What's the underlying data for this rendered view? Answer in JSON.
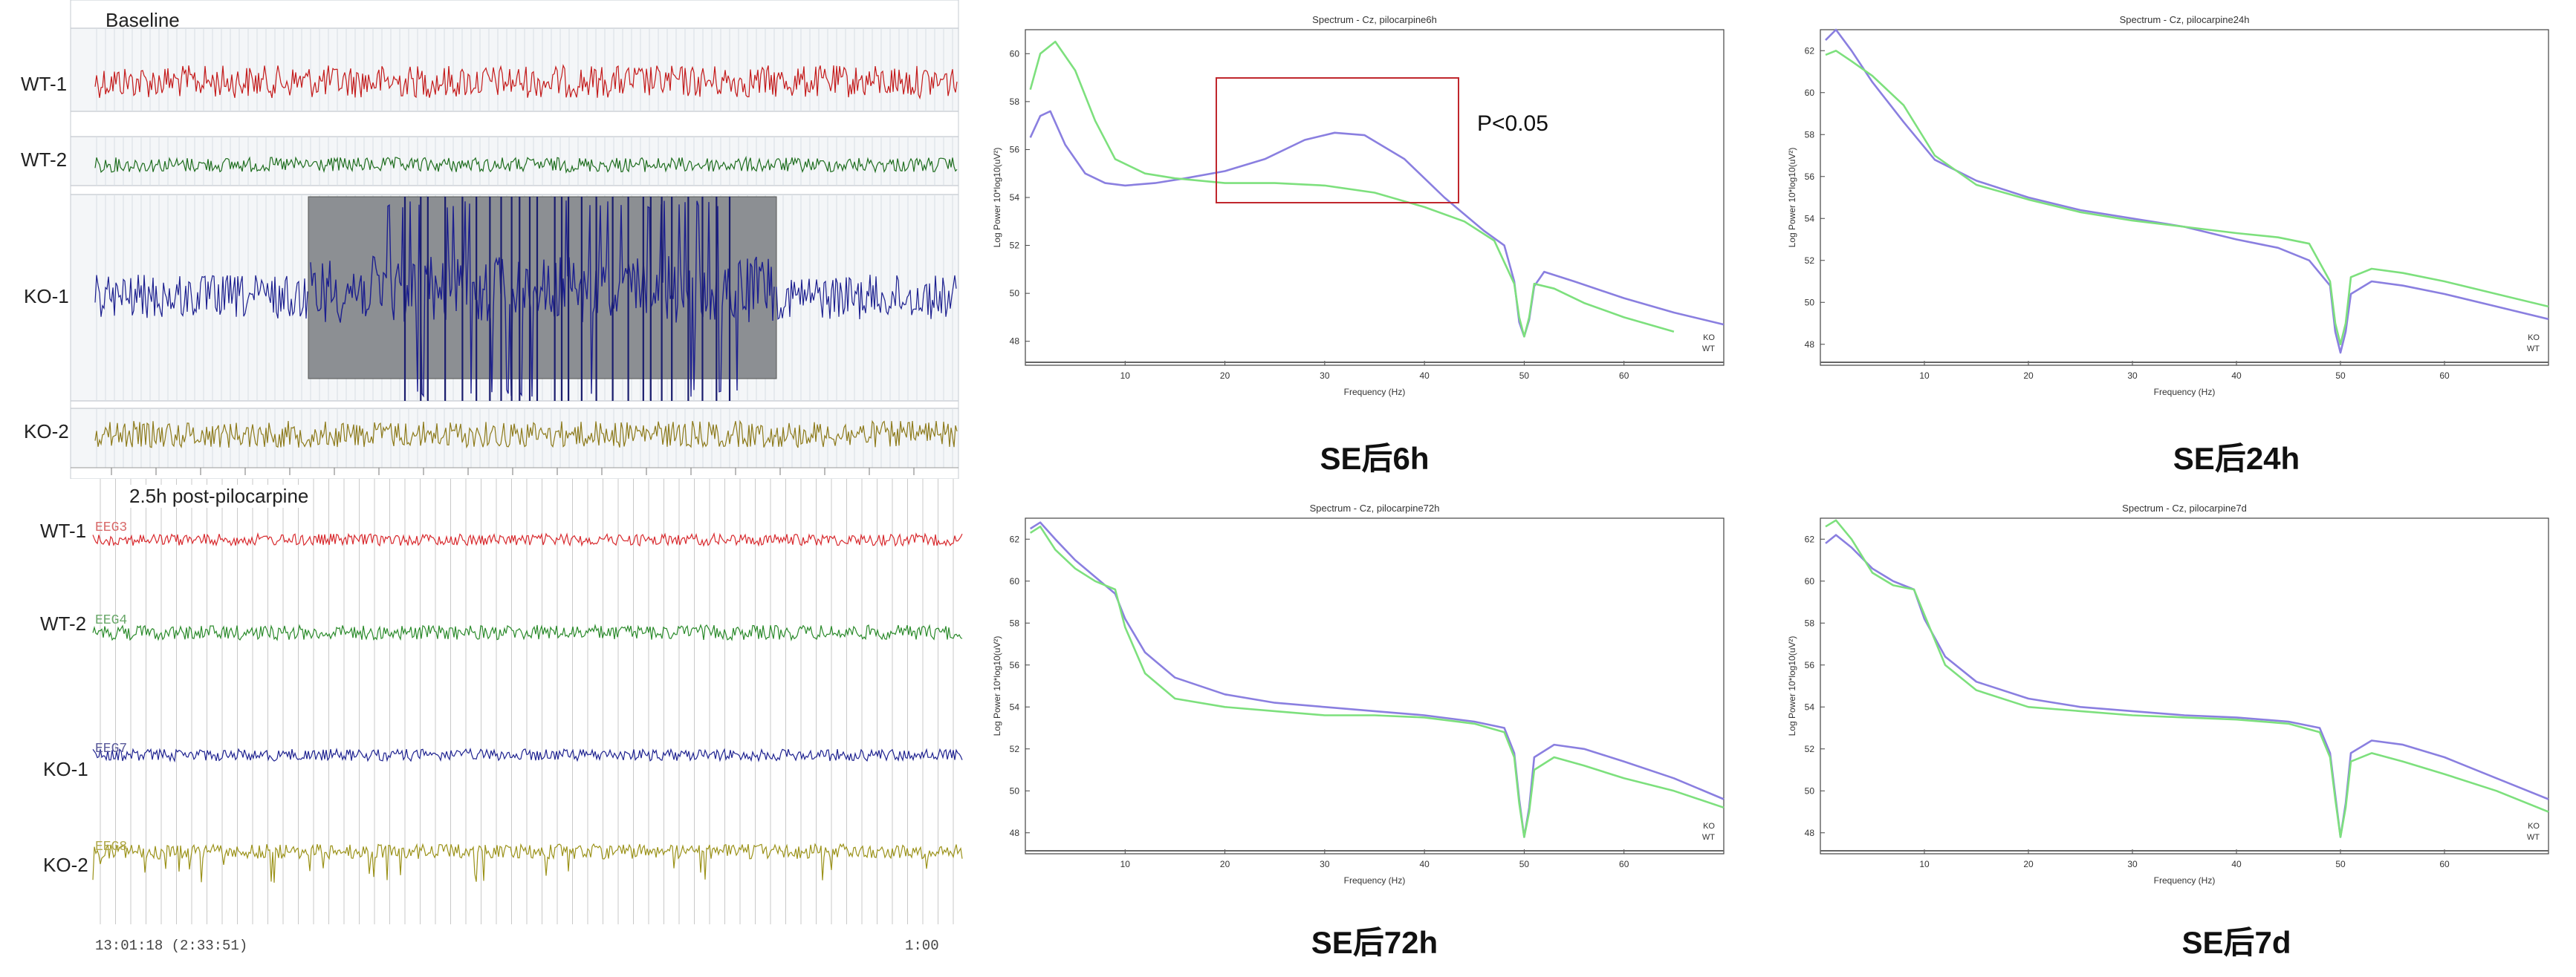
{
  "eeg": {
    "baseline": {
      "title": "Baseline",
      "labels": [
        "WT-1",
        "WT-2",
        "KO-1",
        "KO-2"
      ]
    },
    "post": {
      "title": "2.5h post-pilocarpine",
      "labels": [
        "WT-1",
        "WT-2",
        "KO-1",
        "KO-2"
      ],
      "channels": [
        "EEG3",
        "EEG4",
        "EEG7",
        "EEG8"
      ],
      "time_left": "13:01:18 (2:33:51)",
      "time_right": "1:00"
    },
    "colors": {
      "wt1": "#c41a1a",
      "wt2": "#1f6e1f",
      "ko1": "#1c1f8f",
      "ko2": "#8d7a1a",
      "wt1_post": "#d8292d",
      "wt2_post": "#2a8a2a",
      "ko1_post": "#1e2290",
      "ko2_post": "#9b9219"
    }
  },
  "annotation": {
    "text": "P<0.05",
    "box_color": "#c0272d"
  },
  "chart_data": [
    {
      "type": "line",
      "title": "Spectrum - Cz, pilocarpine6h",
      "caption": "SE后6h",
      "xlabel": "Frequency (Hz)",
      "ylabel": "Log Power 10*log10(uV²)",
      "xlim": [
        0,
        70
      ],
      "ylim": [
        47,
        61
      ],
      "xticks": [
        10,
        20,
        30,
        40,
        50,
        60
      ],
      "yticks": [
        48,
        50,
        52,
        54,
        56,
        58,
        60
      ],
      "legend": [
        "KO",
        "WT"
      ],
      "legend_position": "bottom-right",
      "series": [
        {
          "name": "KO",
          "color": "#8a7fe0",
          "x": [
            0.5,
            1.5,
            2.5,
            4,
            6,
            8,
            10,
            13,
            16,
            20,
            24,
            28,
            31,
            34,
            38,
            42,
            46,
            48,
            49,
            49.5,
            50,
            50.5,
            51,
            52,
            55,
            60,
            65,
            70
          ],
          "y": [
            56.5,
            57.4,
            57.6,
            56.2,
            55.0,
            54.6,
            54.5,
            54.6,
            54.8,
            55.1,
            55.6,
            56.4,
            56.7,
            56.6,
            55.6,
            54.0,
            52.6,
            52.0,
            50.5,
            48.8,
            48.2,
            48.9,
            50.3,
            50.9,
            50.5,
            49.8,
            49.2,
            48.7
          ]
        },
        {
          "name": "WT",
          "color": "#7de07d",
          "x": [
            0.5,
            1.5,
            3,
            5,
            7,
            9,
            12,
            15,
            20,
            25,
            30,
            35,
            40,
            44,
            47,
            49,
            49.5,
            50,
            50.5,
            51,
            53,
            56,
            60,
            65
          ],
          "y": [
            58.5,
            60.0,
            60.5,
            59.3,
            57.2,
            55.6,
            55.0,
            54.8,
            54.6,
            54.6,
            54.5,
            54.2,
            53.6,
            53.0,
            52.2,
            50.4,
            49.0,
            48.2,
            49.0,
            50.4,
            50.2,
            49.6,
            49.0,
            48.4
          ]
        }
      ]
    },
    {
      "type": "line",
      "title": "Spectrum - Cz, pilocarpine24h",
      "caption": "SE后24h",
      "xlabel": "Frequency (Hz)",
      "ylabel": "Log Power 10*log10(uV²)",
      "xlim": [
        0,
        70
      ],
      "ylim": [
        47,
        63
      ],
      "xticks": [
        10,
        20,
        30,
        40,
        50,
        60
      ],
      "yticks": [
        48,
        50,
        52,
        54,
        56,
        58,
        60,
        62
      ],
      "legend": [
        "KO",
        "WT"
      ],
      "legend_position": "bottom-right",
      "series": [
        {
          "name": "KO",
          "color": "#8a7fe0",
          "x": [
            0.5,
            1.5,
            3,
            5,
            8,
            11,
            15,
            20,
            25,
            30,
            35,
            40,
            44,
            47,
            49,
            49.5,
            50,
            50.5,
            51,
            53,
            56,
            60,
            65,
            70
          ],
          "y": [
            62.5,
            63.0,
            62.0,
            60.5,
            58.6,
            56.8,
            55.8,
            55.0,
            54.4,
            54.0,
            53.6,
            53.0,
            52.6,
            52.0,
            50.8,
            48.6,
            47.6,
            48.6,
            50.4,
            51.0,
            50.8,
            50.4,
            49.8,
            49.2
          ]
        },
        {
          "name": "WT",
          "color": "#7de07d",
          "x": [
            0.5,
            1.5,
            3,
            5,
            8,
            11,
            15,
            20,
            25,
            30,
            35,
            40,
            44,
            47,
            49,
            49.5,
            50,
            50.5,
            51,
            53,
            56,
            60,
            65,
            70
          ],
          "y": [
            61.8,
            62.0,
            61.5,
            60.8,
            59.4,
            57.0,
            55.6,
            54.9,
            54.3,
            53.9,
            53.6,
            53.3,
            53.1,
            52.8,
            51.0,
            49.0,
            48.0,
            49.0,
            51.2,
            51.6,
            51.4,
            51.0,
            50.4,
            49.8
          ]
        }
      ]
    },
    {
      "type": "line",
      "title": "Spectrum - Cz, pilocarpine72h",
      "caption": "SE后72h",
      "xlabel": "Frequency (Hz)",
      "ylabel": "Log Power 10*log10(uV²)",
      "xlim": [
        0,
        70
      ],
      "ylim": [
        47,
        63
      ],
      "xticks": [
        10,
        20,
        30,
        40,
        50,
        60
      ],
      "yticks": [
        48,
        50,
        52,
        54,
        56,
        58,
        60,
        62
      ],
      "legend": [
        "KO",
        "WT"
      ],
      "legend_position": "bottom-right",
      "series": [
        {
          "name": "KO",
          "color": "#8a7fe0",
          "x": [
            0.5,
            1.5,
            3,
            5,
            7,
            9,
            10,
            12,
            15,
            20,
            25,
            30,
            35,
            40,
            45,
            48,
            49,
            49.5,
            50,
            50.5,
            51,
            53,
            56,
            60,
            65,
            70
          ],
          "y": [
            62.5,
            62.8,
            62.0,
            61.0,
            60.2,
            59.4,
            58.2,
            56.6,
            55.4,
            54.6,
            54.2,
            54.0,
            53.8,
            53.6,
            53.3,
            53.0,
            51.8,
            49.6,
            47.8,
            49.2,
            51.6,
            52.2,
            52.0,
            51.4,
            50.6,
            49.6
          ]
        },
        {
          "name": "WT",
          "color": "#7de07d",
          "x": [
            0.5,
            1.5,
            3,
            5,
            7,
            9,
            10,
            12,
            15,
            20,
            25,
            30,
            35,
            40,
            45,
            48,
            49,
            49.5,
            50,
            50.5,
            51,
            53,
            56,
            60,
            65,
            70
          ],
          "y": [
            62.3,
            62.6,
            61.5,
            60.6,
            60.0,
            59.6,
            57.8,
            55.6,
            54.4,
            54.0,
            53.8,
            53.6,
            53.6,
            53.5,
            53.2,
            52.8,
            51.6,
            49.4,
            47.8,
            49.0,
            51.0,
            51.6,
            51.2,
            50.6,
            50.0,
            49.2
          ]
        }
      ]
    },
    {
      "type": "line",
      "title": "Spectrum - Cz, pilocarpine7d",
      "caption": "SE后7d",
      "xlabel": "Frequency (Hz)",
      "ylabel": "Log Power 10*log10(uV²)",
      "xlim": [
        0,
        70
      ],
      "ylim": [
        47,
        63
      ],
      "xticks": [
        10,
        20,
        30,
        40,
        50,
        60
      ],
      "yticks": [
        48,
        50,
        52,
        54,
        56,
        58,
        60,
        62
      ],
      "legend": [
        "KO",
        "WT"
      ],
      "legend_position": "bottom-right",
      "series": [
        {
          "name": "KO",
          "color": "#8a7fe0",
          "x": [
            0.5,
            1.5,
            3,
            5,
            7,
            9,
            10,
            12,
            15,
            20,
            25,
            30,
            35,
            40,
            45,
            48,
            49,
            49.5,
            50,
            50.5,
            51,
            53,
            56,
            60,
            65,
            70
          ],
          "y": [
            61.8,
            62.2,
            61.6,
            60.6,
            60.0,
            59.6,
            58.2,
            56.4,
            55.2,
            54.4,
            54.0,
            53.8,
            53.6,
            53.5,
            53.3,
            53.0,
            51.8,
            49.8,
            47.8,
            49.4,
            51.8,
            52.4,
            52.2,
            51.6,
            50.6,
            49.6
          ]
        },
        {
          "name": "WT",
          "color": "#7de07d",
          "x": [
            0.5,
            1.5,
            3,
            5,
            7,
            9,
            10,
            12,
            15,
            20,
            25,
            30,
            35,
            40,
            45,
            48,
            49,
            49.5,
            50,
            50.5,
            51,
            53,
            56,
            60,
            65,
            70
          ],
          "y": [
            62.6,
            62.9,
            62.0,
            60.4,
            59.8,
            59.6,
            58.4,
            56.0,
            54.8,
            54.0,
            53.8,
            53.6,
            53.5,
            53.4,
            53.2,
            52.8,
            51.6,
            49.6,
            47.8,
            49.2,
            51.4,
            51.8,
            51.4,
            50.8,
            50.0,
            49.0
          ]
        }
      ]
    }
  ]
}
